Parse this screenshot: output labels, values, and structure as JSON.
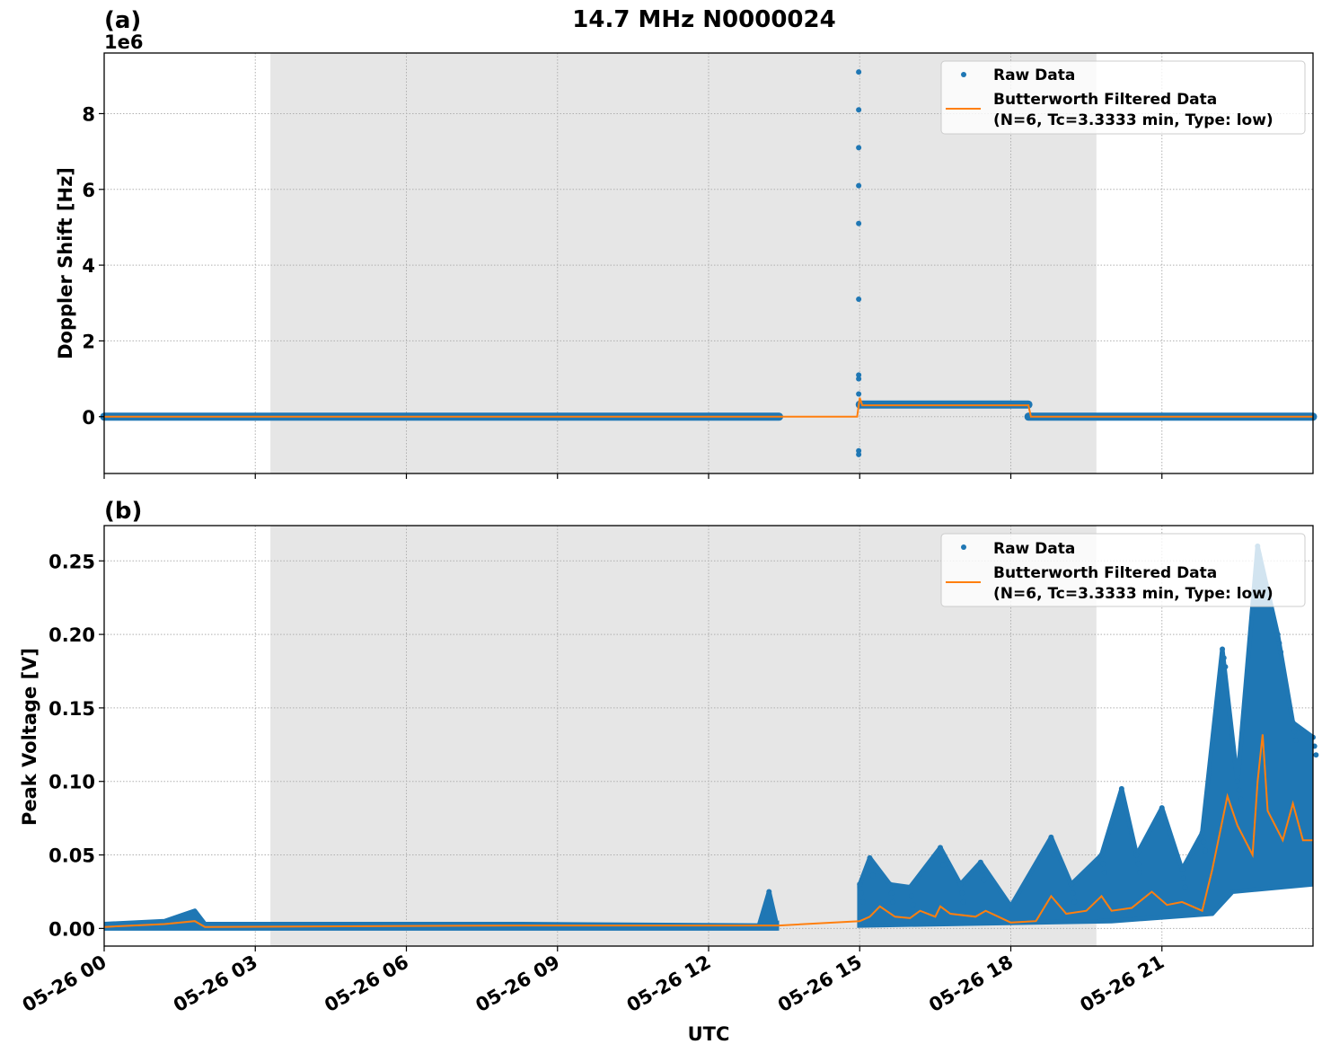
{
  "figure": {
    "title": "14.7 MHz N0000024",
    "xlabel": "UTC"
  },
  "colors": {
    "raw": "#1f77b4",
    "filtered": "#ff7f0e",
    "shade": "#e6e6e6",
    "grid": "#b0b0b0"
  },
  "chart_data": [
    {
      "panel_label": "(a)",
      "type": "scatter",
      "title": "14.7 MHz N0000024",
      "xlabel": "",
      "ylabel": "Doppler Shift [Hz]",
      "y_offset_label": "1e6",
      "ylim": [
        -1500000,
        9600000
      ],
      "xlim_hours": [
        0,
        24
      ],
      "yticks": [
        0,
        2,
        4,
        6,
        8
      ],
      "ytick_labels": [
        "0",
        "2",
        "4",
        "6",
        "8"
      ],
      "xticks_hours": [
        0,
        3,
        6,
        9,
        12,
        15,
        18,
        21
      ],
      "grid": true,
      "shaded_interval_hours": [
        3.3,
        19.7
      ],
      "legend": {
        "position": "upper right",
        "entries": [
          "Raw Data",
          "Butterworth Filtered Data",
          "(N=6, Tc=3.3333 min, Type: low)"
        ]
      },
      "series": [
        {
          "name": "Raw Data",
          "style": "dots",
          "segments": [
            {
              "x_hours": [
                0,
                13.4
              ],
              "y": 0
            },
            {
              "x_hours": [
                15.0,
                18.35
              ],
              "y": 320000
            },
            {
              "x_hours": [
                18.35,
                24
              ],
              "y": 0
            }
          ],
          "outliers": {
            "x_hours": 14.98,
            "y": [
              9100000,
              8100000,
              7100000,
              6100000,
              5100000,
              3100000,
              1100000,
              1000000,
              600000,
              -900000,
              -1000000
            ]
          }
        },
        {
          "name": "Butterworth Filtered Data",
          "style": "line",
          "points": [
            [
              0,
              0
            ],
            [
              13.4,
              0
            ],
            [
              14.95,
              0
            ],
            [
              15.0,
              500000
            ],
            [
              15.05,
              300000
            ],
            [
              18.35,
              300000
            ],
            [
              18.4,
              0
            ],
            [
              24,
              0
            ]
          ]
        }
      ]
    },
    {
      "panel_label": "(b)",
      "type": "scatter",
      "title": "",
      "xlabel": "UTC",
      "ylabel": "Peak Voltage [V]",
      "ylim": [
        -0.012,
        0.274
      ],
      "xlim_hours": [
        0,
        24
      ],
      "yticks": [
        0.0,
        0.05,
        0.1,
        0.15,
        0.2,
        0.25
      ],
      "ytick_labels": [
        "0.00",
        "0.05",
        "0.10",
        "0.15",
        "0.20",
        "0.25"
      ],
      "xticks_hours": [
        0,
        3,
        6,
        9,
        12,
        15,
        18,
        21
      ],
      "xtick_labels": [
        "05-26 00",
        "05-26 03",
        "05-26 06",
        "05-26 09",
        "05-26 12",
        "05-26 15",
        "05-26 18",
        "05-26 21"
      ],
      "grid": true,
      "shaded_interval_hours": [
        3.3,
        19.7
      ],
      "legend": {
        "position": "upper right",
        "entries": [
          "Raw Data",
          "Butterworth Filtered Data",
          "(N=6, Tc=3.3333 min, Type: low)"
        ]
      },
      "series": [
        {
          "name": "Raw Data (upper envelope)",
          "style": "dots",
          "envelope_top": [
            [
              0,
              0.003
            ],
            [
              1.2,
              0.005
            ],
            [
              1.8,
              0.012
            ],
            [
              2.0,
              0.003
            ],
            [
              8.3,
              0.003
            ],
            [
              13.0,
              0.002
            ],
            [
              13.2,
              0.025
            ],
            [
              13.35,
              0.003
            ],
            [
              15.0,
              0.03
            ],
            [
              15.2,
              0.048
            ],
            [
              15.6,
              0.03
            ],
            [
              16.0,
              0.028
            ],
            [
              16.6,
              0.055
            ],
            [
              17.0,
              0.03
            ],
            [
              17.4,
              0.045
            ],
            [
              18.0,
              0.015
            ],
            [
              18.8,
              0.062
            ],
            [
              19.2,
              0.03
            ],
            [
              19.8,
              0.05
            ],
            [
              20.2,
              0.095
            ],
            [
              20.5,
              0.05
            ],
            [
              21.0,
              0.082
            ],
            [
              21.4,
              0.04
            ],
            [
              21.8,
              0.065
            ],
            [
              22.2,
              0.19
            ],
            [
              22.5,
              0.1
            ],
            [
              22.9,
              0.26
            ],
            [
              23.3,
              0.2
            ],
            [
              23.6,
              0.14
            ],
            [
              24,
              0.13
            ]
          ],
          "envelope_bottom": [
            [
              0,
              0
            ],
            [
              13.35,
              0
            ],
            [
              15.0,
              0.002
            ],
            [
              20.0,
              0.005
            ],
            [
              22.0,
              0.01
            ],
            [
              22.4,
              0.025
            ],
            [
              24,
              0.03
            ]
          ]
        },
        {
          "name": "Butterworth Filtered Data",
          "style": "line",
          "points": [
            [
              0,
              0.001
            ],
            [
              1.2,
              0.003
            ],
            [
              1.8,
              0.005
            ],
            [
              2.0,
              0.001
            ],
            [
              8.3,
              0.002
            ],
            [
              13.2,
              0.002
            ],
            [
              13.4,
              0.002
            ],
            [
              15.0,
              0.005
            ],
            [
              15.2,
              0.008
            ],
            [
              15.4,
              0.015
            ],
            [
              15.7,
              0.008
            ],
            [
              16.0,
              0.007
            ],
            [
              16.2,
              0.012
            ],
            [
              16.5,
              0.008
            ],
            [
              16.6,
              0.015
            ],
            [
              16.8,
              0.01
            ],
            [
              17.3,
              0.008
            ],
            [
              17.5,
              0.012
            ],
            [
              18.0,
              0.004
            ],
            [
              18.5,
              0.005
            ],
            [
              18.8,
              0.022
            ],
            [
              19.1,
              0.01
            ],
            [
              19.5,
              0.012
            ],
            [
              19.8,
              0.022
            ],
            [
              20.0,
              0.012
            ],
            [
              20.4,
              0.014
            ],
            [
              20.8,
              0.025
            ],
            [
              21.1,
              0.016
            ],
            [
              21.4,
              0.018
            ],
            [
              21.8,
              0.012
            ],
            [
              22.0,
              0.04
            ],
            [
              22.3,
              0.09
            ],
            [
              22.5,
              0.07
            ],
            [
              22.8,
              0.05
            ],
            [
              22.9,
              0.1
            ],
            [
              23.0,
              0.132
            ],
            [
              23.1,
              0.08
            ],
            [
              23.4,
              0.06
            ],
            [
              23.6,
              0.085
            ],
            [
              23.8,
              0.06
            ],
            [
              24,
              0.06
            ]
          ]
        }
      ]
    }
  ]
}
